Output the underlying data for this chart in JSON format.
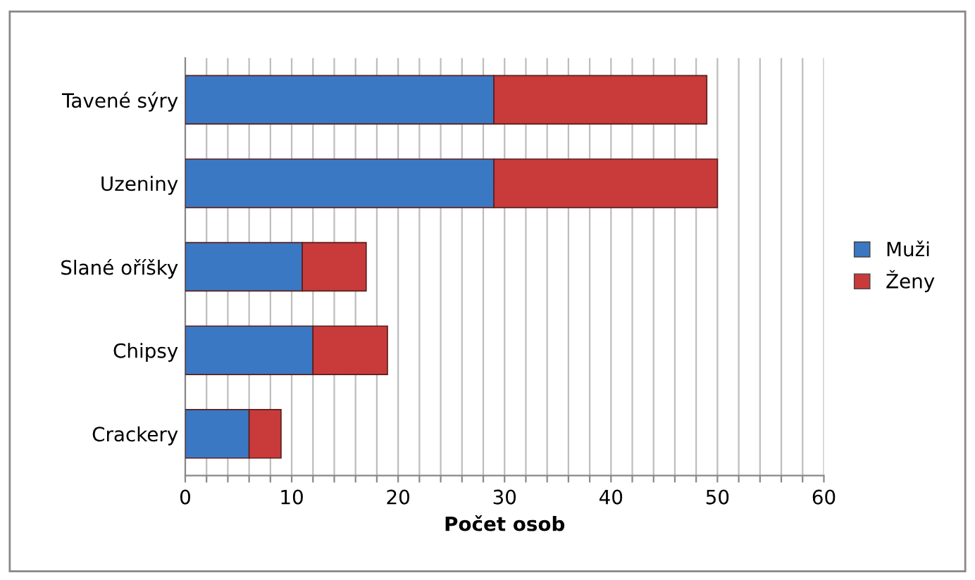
{
  "chart_data": {
    "type": "bar",
    "orientation": "horizontal",
    "stacked": true,
    "xlabel": "Počet osob",
    "categories": [
      "Tavené sýry",
      "Uzeniny",
      "Slané oříšky",
      "Chipsy",
      "Crackery"
    ],
    "series": [
      {
        "name": "Muži",
        "color": "#3b78c3",
        "values": [
          29,
          29,
          11,
          12,
          6
        ]
      },
      {
        "name": "Ženy",
        "color": "#c93a3a",
        "values": [
          20,
          21,
          6,
          7,
          3
        ]
      }
    ],
    "xlim": [
      0,
      60
    ],
    "xticks": [
      0,
      {
        "value": 2,
        "label": null
      },
      {
        "value": 4,
        "label": null
      },
      {
        "value": 6,
        "label": null
      },
      {
        "value": 8,
        "label": null
      },
      10,
      {
        "value": 12,
        "label": null
      },
      {
        "value": 14,
        "label": null
      },
      {
        "value": 16,
        "label": null
      },
      {
        "value": 18,
        "label": null
      },
      20,
      {
        "value": 22,
        "label": null
      },
      {
        "value": 24,
        "label": null
      },
      {
        "value": 26,
        "label": null
      },
      {
        "value": 28,
        "label": null
      },
      30,
      {
        "value": 32,
        "label": null
      },
      {
        "value": 34,
        "label": null
      },
      {
        "value": 36,
        "label": null
      },
      {
        "value": 38,
        "label": null
      },
      40,
      {
        "value": 42,
        "label": null
      },
      {
        "value": 44,
        "label": null
      },
      {
        "value": 46,
        "label": null
      },
      {
        "value": 48,
        "label": null
      },
      50,
      {
        "value": 52,
        "label": null
      },
      {
        "value": 54,
        "label": null
      },
      {
        "value": 56,
        "label": null
      },
      {
        "value": 58,
        "label": null
      },
      60
    ],
    "grid": "x",
    "legend": "right"
  }
}
